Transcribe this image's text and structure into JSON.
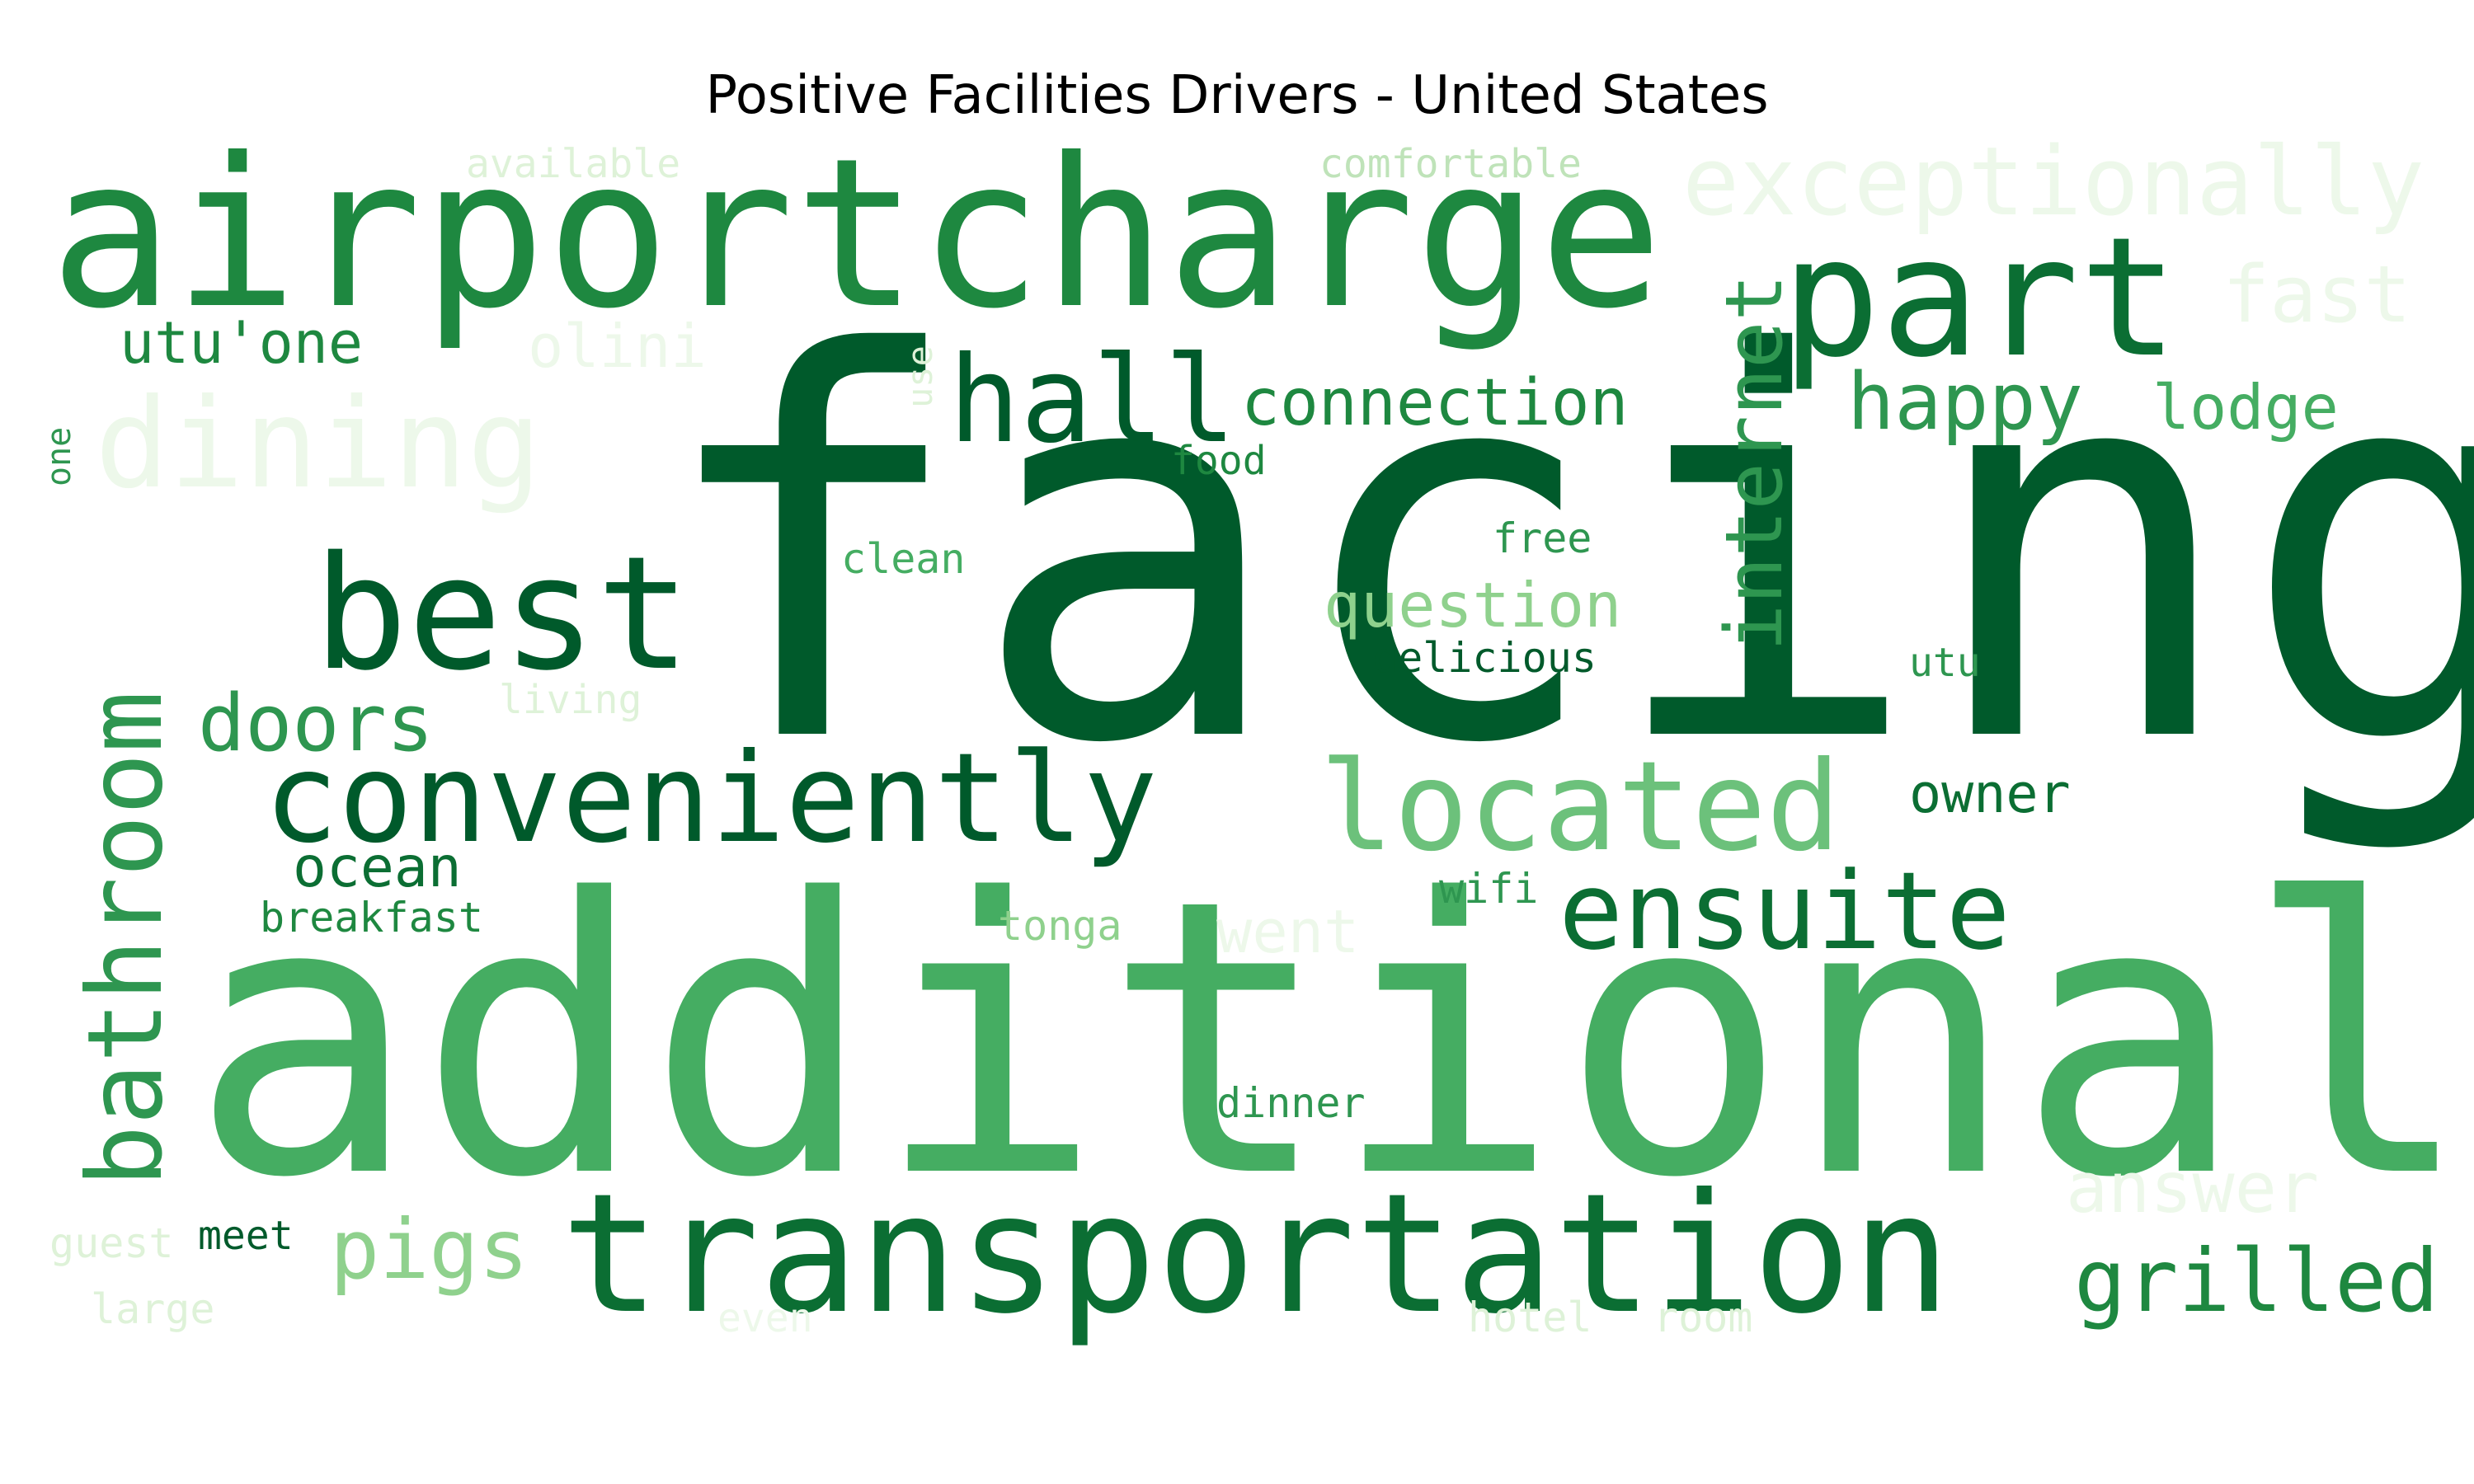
{
  "title": "Positive Facilities Drivers - United States",
  "palette": {
    "c1": "#005a2b",
    "c2": "#0b6e33",
    "c3": "#1e8840",
    "c4": "#2e9650",
    "c5": "#45ad62",
    "c6": "#6cc17b",
    "c7": "#8fd18d",
    "c8": "#bfe3b9",
    "c9": "#def2d8",
    "c10": "#edf8ea"
  },
  "words": [
    {
      "text": "facing",
      "color": "c1"
    },
    {
      "text": "additional",
      "color": "c5"
    },
    {
      "text": "airportcharge",
      "color": "c3"
    },
    {
      "text": "transportation",
      "color": "c2"
    },
    {
      "text": "part",
      "color": "c2"
    },
    {
      "text": "conveniently",
      "color": "c1"
    },
    {
      "text": "best",
      "color": "c1"
    },
    {
      "text": "bathroom",
      "color": "c4"
    },
    {
      "text": "dining",
      "color": "c10"
    },
    {
      "text": "located",
      "color": "c6"
    },
    {
      "text": "ensuite",
      "color": "c2"
    },
    {
      "text": "hall",
      "color": "c1"
    },
    {
      "text": "exceptionally",
      "color": "c10"
    },
    {
      "text": "internet",
      "color": "c4"
    },
    {
      "text": "happy",
      "color": "c4"
    },
    {
      "text": "grilled",
      "color": "c3"
    },
    {
      "text": "connection",
      "color": "c3"
    },
    {
      "text": "doors",
      "color": "c4"
    },
    {
      "text": "pigs",
      "color": "c7"
    },
    {
      "text": "fast",
      "color": "c10"
    },
    {
      "text": "lodge",
      "color": "c5"
    },
    {
      "text": "answer",
      "color": "c10"
    },
    {
      "text": "question",
      "color": "c7"
    },
    {
      "text": "utu'one",
      "color": "c3"
    },
    {
      "text": "ocean",
      "color": "c2"
    },
    {
      "text": "owner",
      "color": "c2"
    },
    {
      "text": "olini",
      "color": "c10"
    },
    {
      "text": "went",
      "color": "c10"
    },
    {
      "text": "breakfast",
      "color": "c3"
    },
    {
      "text": "delicious",
      "color": "c1"
    },
    {
      "text": "clean",
      "color": "c5"
    },
    {
      "text": "free",
      "color": "c4"
    },
    {
      "text": "food",
      "color": "c3"
    },
    {
      "text": "dinner",
      "color": "c4"
    },
    {
      "text": "tonga",
      "color": "c7"
    },
    {
      "text": "wifi",
      "color": "c4"
    },
    {
      "text": "utu",
      "color": "c4"
    },
    {
      "text": "meet",
      "color": "c1"
    },
    {
      "text": "available",
      "color": "c9"
    },
    {
      "text": "comfortable",
      "color": "c8"
    },
    {
      "text": "living",
      "color": "c9"
    },
    {
      "text": "use",
      "color": "c9"
    },
    {
      "text": "one",
      "color": "c4"
    },
    {
      "text": "guest",
      "color": "c9"
    },
    {
      "text": "large",
      "color": "c9"
    },
    {
      "text": "even",
      "color": "c10"
    },
    {
      "text": "hotel",
      "color": "c9"
    },
    {
      "text": "room",
      "color": "c9"
    }
  ]
}
